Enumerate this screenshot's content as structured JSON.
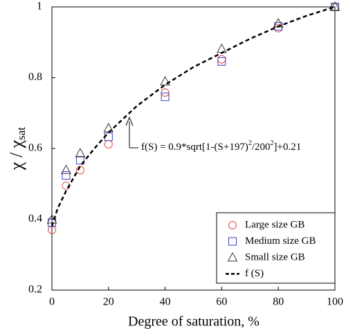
{
  "chart_data": {
    "type": "scatter",
    "y_label": {
      "text": "χ / χ",
      "sub": "sat"
    },
    "x_label": "Degree of saturation, %",
    "xlim": [
      0,
      100
    ],
    "xticks": [
      0,
      20,
      40,
      60,
      80,
      100
    ],
    "ylim": [
      0.2,
      1
    ],
    "yticks": [
      0.2,
      0.4,
      0.6,
      0.8,
      1
    ],
    "legend": "bottom-right",
    "annotation": [
      {
        "text": "f(S) = 0.9*sqrt[1-(S+197)"
      },
      {
        "text": "2",
        "sup": true
      },
      {
        "text": "/200"
      },
      {
        "text": "2",
        "sup": true
      },
      {
        "text": "]+0.21"
      }
    ],
    "series": [
      {
        "name": "Large size GB",
        "marker": "circle",
        "color": "#e04848",
        "x": [
          0,
          5,
          10,
          20,
          40,
          60,
          80,
          100
        ],
        "y": [
          0.37,
          0.495,
          0.539,
          0.612,
          0.758,
          0.852,
          0.94,
          1.0
        ]
      },
      {
        "name": "Medium size GB",
        "marker": "square",
        "color": "#3c3cb8",
        "x": [
          0,
          5,
          10,
          20,
          40,
          60,
          80,
          100
        ],
        "y": [
          0.391,
          0.524,
          0.567,
          0.633,
          0.746,
          0.846,
          0.945,
          1.0
        ]
      },
      {
        "name": "Small size GB",
        "marker": "triangle",
        "color": "#333333",
        "x": [
          0,
          5,
          10,
          20,
          40,
          60,
          80,
          100
        ],
        "y": [
          0.399,
          0.539,
          0.586,
          0.657,
          0.789,
          0.881,
          0.953,
          1.0
        ]
      },
      {
        "name": "f (S)",
        "marker": "dashed-line",
        "color": "#000000",
        "x": [
          0,
          2,
          5,
          10,
          15,
          20,
          30,
          40,
          50,
          60,
          70,
          80,
          90,
          100
        ],
        "y": [
          0.38,
          0.43,
          0.48,
          0.55,
          0.6,
          0.645,
          0.72,
          0.78,
          0.83,
          0.87,
          0.91,
          0.945,
          0.975,
          1.0
        ]
      }
    ]
  }
}
